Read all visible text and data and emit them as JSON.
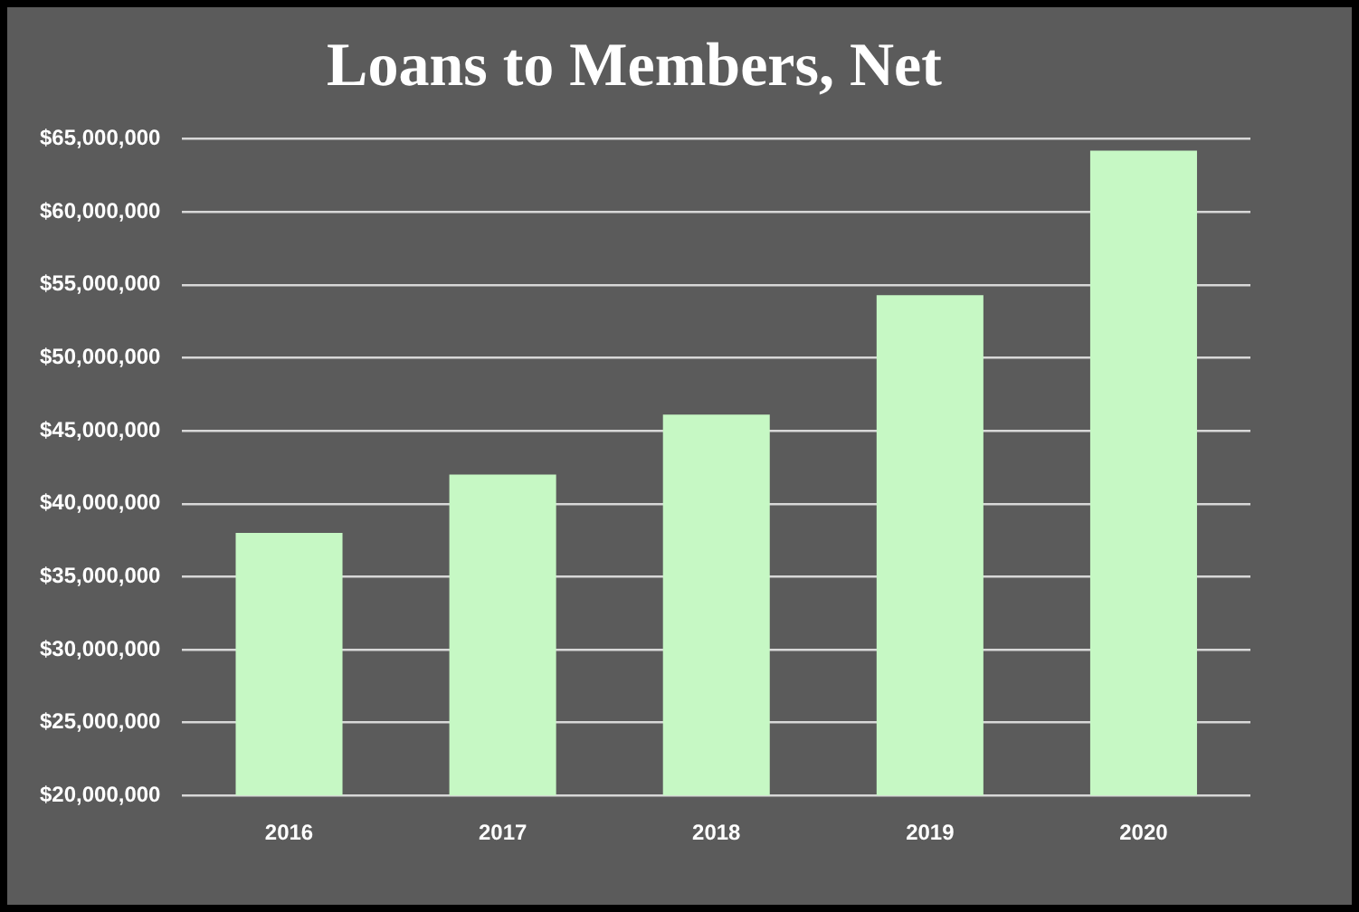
{
  "chart_data": {
    "type": "bar",
    "title": "Loans to Members, Net",
    "categories": [
      "2016",
      "2017",
      "2018",
      "2019",
      "2020"
    ],
    "values": [
      38000000,
      42000000,
      46100000,
      54300000,
      64200000
    ],
    "color": "#c6f8c4",
    "ylim": [
      20000000,
      65000000
    ],
    "yticks": [
      {
        "value": 20000000,
        "label": "$20,000,000"
      },
      {
        "value": 25000000,
        "label": "$25,000,000"
      },
      {
        "value": 30000000,
        "label": "$30,000,000"
      },
      {
        "value": 35000000,
        "label": "$35,000,000"
      },
      {
        "value": 40000000,
        "label": "$40,000,000"
      },
      {
        "value": 45000000,
        "label": "$45,000,000"
      },
      {
        "value": 50000000,
        "label": "$50,000,000"
      },
      {
        "value": 55000000,
        "label": "$55,000,000"
      },
      {
        "value": 60000000,
        "label": "$60,000,000"
      },
      {
        "value": 65000000,
        "label": "$65,000,000"
      }
    ],
    "grid": "y",
    "legend": false
  }
}
